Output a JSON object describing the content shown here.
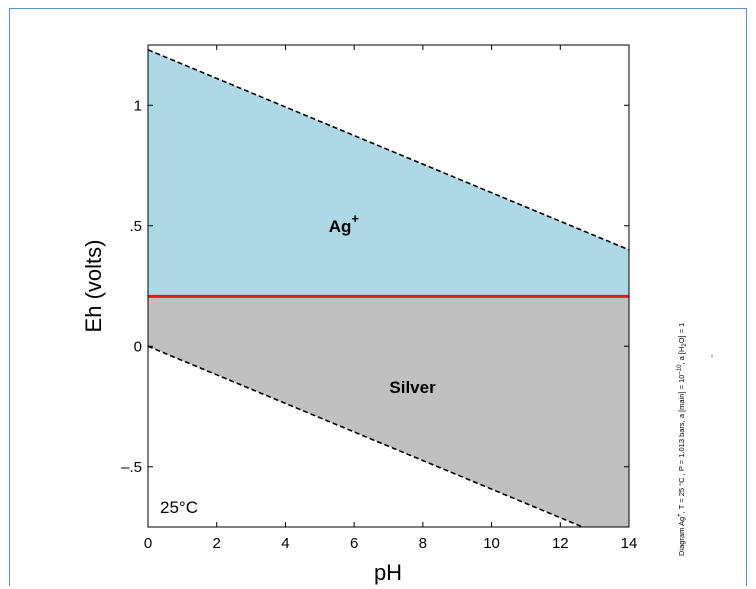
{
  "chart_data": {
    "type": "area",
    "title": "",
    "xlabel": "pH",
    "ylabel": "Eh (volts)",
    "xlim": [
      0,
      14
    ],
    "ylim": [
      -0.75,
      1.25
    ],
    "x_ticks": [
      0,
      2,
      4,
      6,
      8,
      10,
      12,
      14
    ],
    "y_ticks": [
      {
        "value": -0.5,
        "label": "–.5"
      },
      {
        "value": 0,
        "label": "0"
      },
      {
        "value": 0.5,
        "label": ".5"
      },
      {
        "value": 1,
        "label": "1"
      }
    ],
    "grid": false,
    "regions": [
      {
        "name": "Ag",
        "superscript": "+",
        "color": "#add8e6",
        "label_x": 5.7,
        "label_y": 0.5
      },
      {
        "name": "Silver",
        "color": "#c0c0c0",
        "label_x": 7.7,
        "label_y": -0.17
      }
    ],
    "boundary_Ag_plus_Silver": {
      "eh": 0.207,
      "color": "#e8141c"
    },
    "water_stability_lines": {
      "upper": {
        "x": [
          0,
          14
        ],
        "y": [
          1.23,
          0.4
        ]
      },
      "lower": {
        "x": [
          0,
          14
        ],
        "y": [
          0.0,
          -0.83
        ]
      }
    },
    "annotation": "25°C",
    "side_note": {
      "prefix": "Diagram Ag",
      "superscript": "+",
      "mid1": ", T = 25 °C , P = 1.013 bars, a [main] = 10",
      "exp": "–10",
      "mid2": ", a [H",
      "sub": "2",
      "suffix": "O] = 1"
    }
  }
}
